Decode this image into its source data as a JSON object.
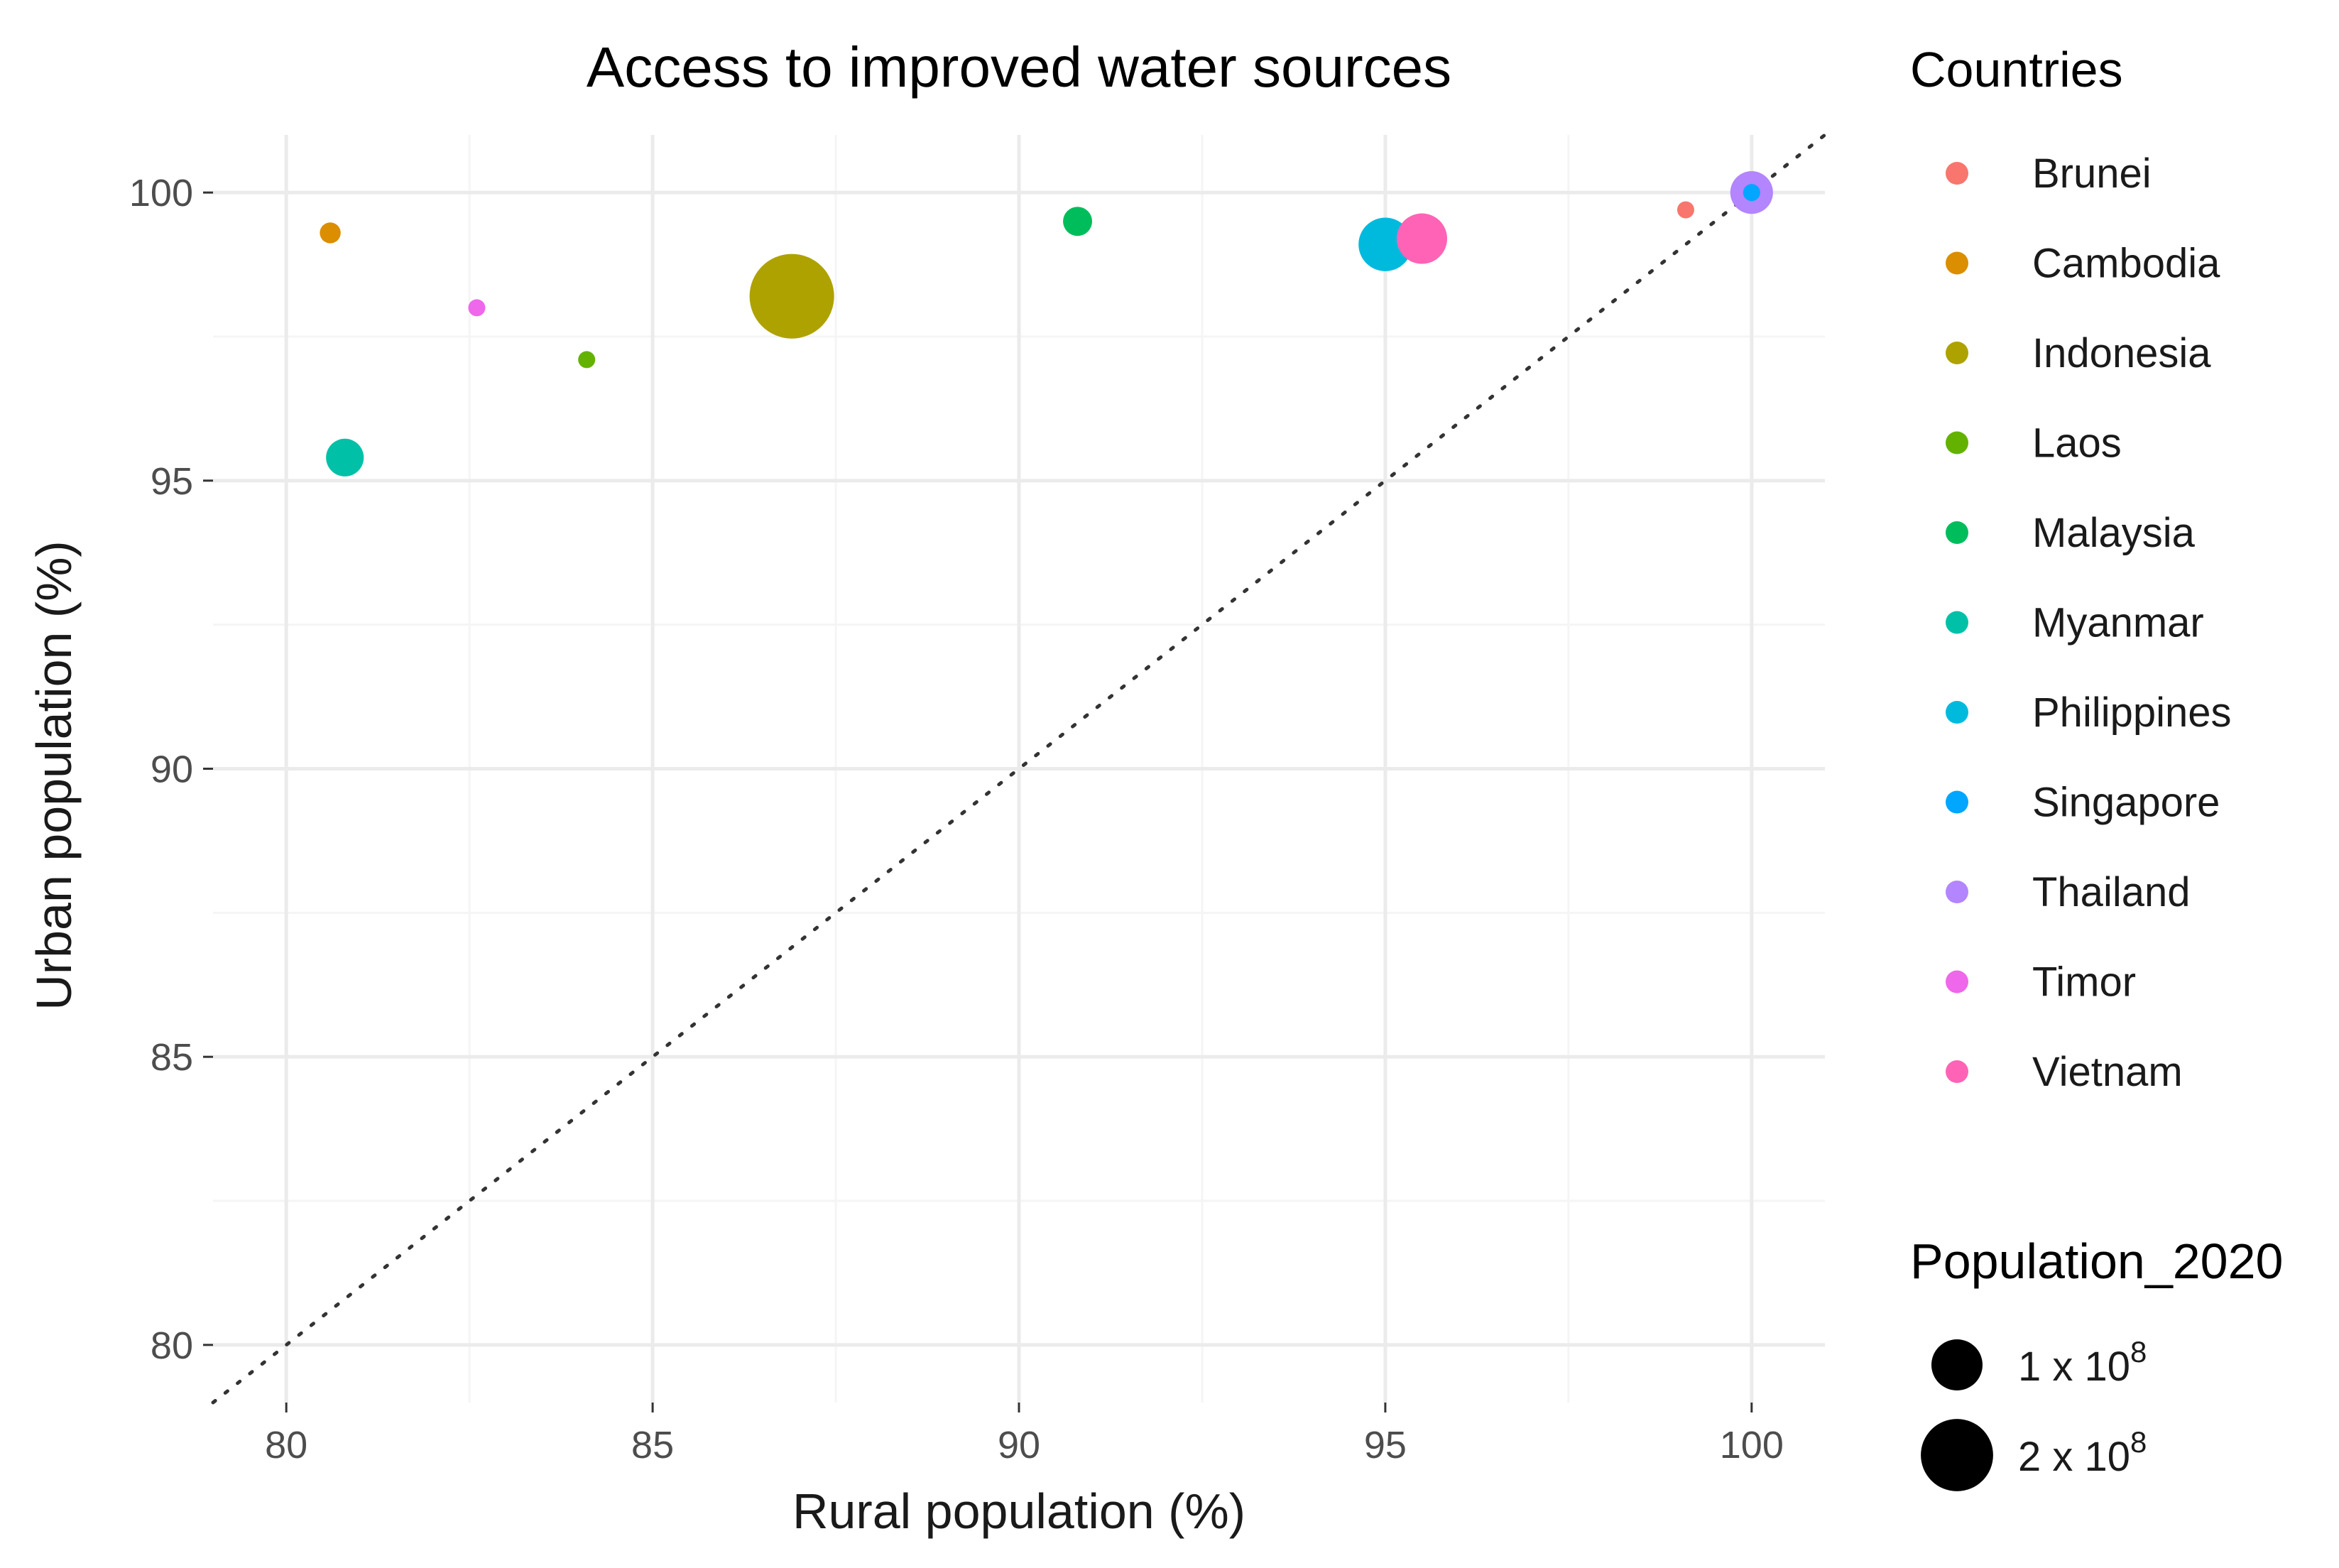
{
  "chart_data": {
    "type": "scatter",
    "title": "Access to improved water sources",
    "xlabel": "Rural population (%)",
    "ylabel": "Urban population (%)",
    "xlim": [
      79,
      101
    ],
    "ylim": [
      79,
      101
    ],
    "x_ticks": [
      80,
      85,
      90,
      95,
      100
    ],
    "y_ticks": [
      80,
      85,
      90,
      95,
      100
    ],
    "grid": true,
    "reference_line": "y = x (dotted)",
    "color_legend": {
      "title": "Countries",
      "position": "right"
    },
    "size_legend": {
      "title": "Population_2020",
      "position": "bottom-right",
      "entries": [
        {
          "value": 100000000,
          "base": "1 x 10",
          "exp": "8"
        },
        {
          "value": 200000000,
          "base": "2 x 10",
          "exp": "8"
        }
      ]
    },
    "series": [
      {
        "name": "Brunei",
        "color": "#F8766D",
        "x": 99.1,
        "y": 99.7,
        "population": 437000
      },
      {
        "name": "Cambodia",
        "color": "#DB8E00",
        "x": 80.6,
        "y": 99.3,
        "population": 16700000
      },
      {
        "name": "Indonesia",
        "color": "#AEA200",
        "x": 86.9,
        "y": 98.2,
        "population": 273500000
      },
      {
        "name": "Laos",
        "color": "#64B200",
        "x": 84.1,
        "y": 97.1,
        "population": 7300000
      },
      {
        "name": "Malaysia",
        "color": "#00BD5C",
        "x": 90.8,
        "y": 99.5,
        "population": 32400000
      },
      {
        "name": "Myanmar",
        "color": "#00C1A7",
        "x": 80.8,
        "y": 95.4,
        "population": 54400000
      },
      {
        "name": "Philippines",
        "color": "#00BADE",
        "x": 95.0,
        "y": 99.1,
        "population": 109600000
      },
      {
        "name": "Singapore",
        "color": "#00A6FF",
        "x": 100.0,
        "y": 100.0,
        "population": 5700000
      },
      {
        "name": "Thailand",
        "color": "#B385FF",
        "x": 100.0,
        "y": 100.0,
        "population": 69800000
      },
      {
        "name": "Timor",
        "color": "#EF67EB",
        "x": 82.6,
        "y": 98.0,
        "population": 1300000
      },
      {
        "name": "Vietnam",
        "color": "#FF63B6",
        "x": 95.5,
        "y": 99.2,
        "population": 97300000
      }
    ]
  }
}
